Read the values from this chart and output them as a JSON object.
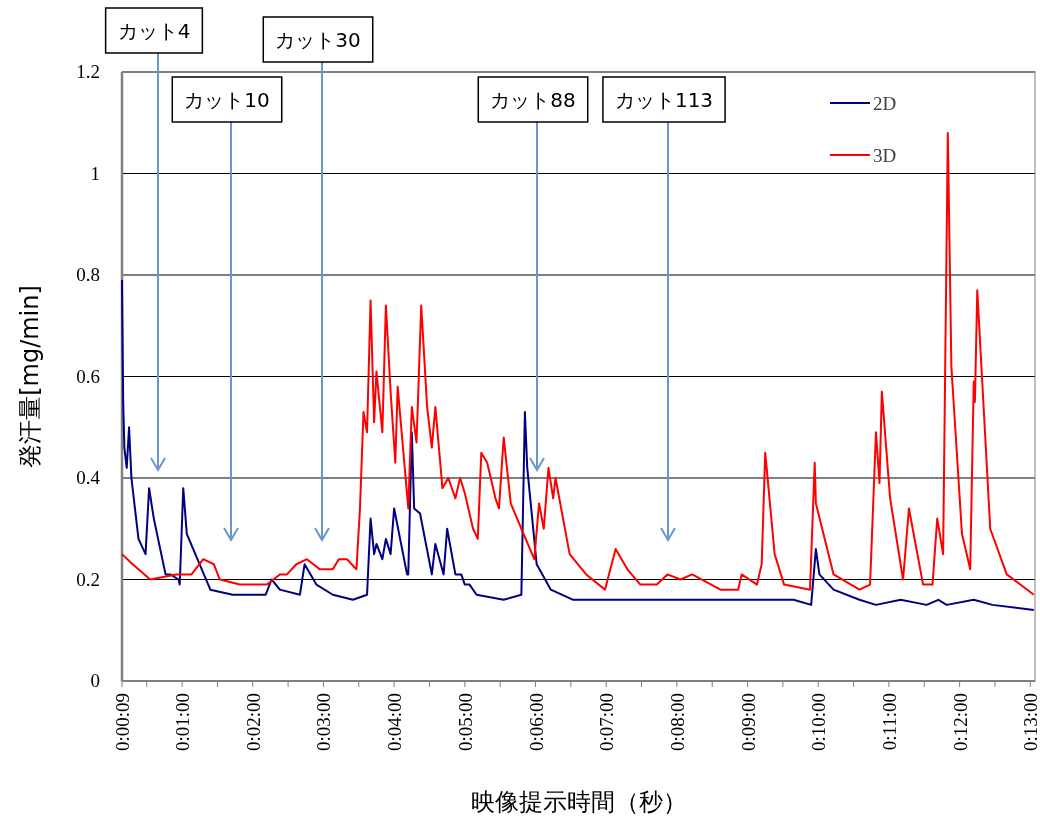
{
  "chart_data": {
    "type": "line",
    "xlabel": "映像提示時間（秒）",
    "ylabel": "発汗量[mg/min]",
    "xlim": [
      9,
      784
    ],
    "ylim": [
      0,
      1.2
    ],
    "xticks": [
      {
        "value": 9,
        "label": "0:00:09"
      },
      {
        "value": 30,
        "label": null
      },
      {
        "value": 60,
        "label": "0:01:00"
      },
      {
        "value": 90,
        "label": null
      },
      {
        "value": 120,
        "label": "0:02:00"
      },
      {
        "value": 150,
        "label": null
      },
      {
        "value": 180,
        "label": "0:03:00"
      },
      {
        "value": 210,
        "label": null
      },
      {
        "value": 240,
        "label": "0:04:00"
      },
      {
        "value": 270,
        "label": null
      },
      {
        "value": 300,
        "label": "0:05:00"
      },
      {
        "value": 330,
        "label": null
      },
      {
        "value": 360,
        "label": "0:06:00"
      },
      {
        "value": 390,
        "label": null
      },
      {
        "value": 420,
        "label": "0:07:00"
      },
      {
        "value": 450,
        "label": null
      },
      {
        "value": 480,
        "label": "0:08:00"
      },
      {
        "value": 510,
        "label": null
      },
      {
        "value": 540,
        "label": "0:09:00"
      },
      {
        "value": 570,
        "label": null
      },
      {
        "value": 600,
        "label": "0:10:00"
      },
      {
        "value": 630,
        "label": null
      },
      {
        "value": 660,
        "label": "0:11:00"
      },
      {
        "value": 690,
        "label": null
      },
      {
        "value": 720,
        "label": "0:12:00"
      },
      {
        "value": 750,
        "label": null
      },
      {
        "value": 780,
        "label": "0:13:00"
      }
    ],
    "yticks": [
      0,
      0.2,
      0.4,
      0.6,
      0.8,
      1,
      1.2
    ],
    "grid": "y",
    "legend": "top right",
    "marker": "none",
    "line_style": "solid",
    "annotations": [
      "カット4",
      "カット10",
      "カット30",
      "カット88",
      "カット113"
    ],
    "series": [
      {
        "name": "2D",
        "color": "#000080",
        "x": [
          9,
          10,
          11,
          13,
          15,
          17,
          23,
          29,
          32,
          36,
          46,
          50,
          57,
          58,
          61,
          64,
          84,
          103,
          131,
          136,
          143,
          160,
          164,
          174,
          188,
          205,
          217,
          220,
          223,
          225,
          230,
          233,
          237,
          240,
          251,
          252,
          255,
          257,
          262,
          272,
          275,
          282,
          285,
          292,
          297,
          300,
          304,
          310,
          333,
          348,
          351,
          353,
          361,
          373,
          392,
          421,
          463,
          483,
          494,
          550,
          579,
          594,
          598,
          601,
          613,
          635,
          649,
          670,
          692,
          702,
          709,
          732,
          748,
          783
        ],
        "values": [
          0.79,
          0.55,
          0.46,
          0.42,
          0.5,
          0.4,
          0.28,
          0.25,
          0.38,
          0.32,
          0.21,
          0.21,
          0.2,
          0.19,
          0.38,
          0.29,
          0.18,
          0.17,
          0.17,
          0.2,
          0.18,
          0.17,
          0.23,
          0.19,
          0.17,
          0.16,
          0.17,
          0.32,
          0.25,
          0.27,
          0.24,
          0.28,
          0.25,
          0.34,
          0.21,
          0.21,
          0.49,
          0.34,
          0.33,
          0.21,
          0.27,
          0.21,
          0.3,
          0.21,
          0.21,
          0.19,
          0.19,
          0.17,
          0.16,
          0.17,
          0.53,
          0.42,
          0.23,
          0.18,
          0.16,
          0.16,
          0.16,
          0.16,
          0.16,
          0.16,
          0.16,
          0.15,
          0.26,
          0.21,
          0.18,
          0.16,
          0.15,
          0.16,
          0.15,
          0.16,
          0.15,
          0.16,
          0.15,
          0.14
        ]
      },
      {
        "name": "3D",
        "color": "#ff0000",
        "x": [
          9,
          18,
          33,
          55,
          68,
          78,
          87,
          92,
          109,
          132,
          143,
          149,
          157,
          166,
          177,
          188,
          193,
          200,
          208,
          211,
          214,
          217,
          220,
          223,
          225,
          230,
          233,
          237,
          241,
          243,
          252,
          255,
          259,
          263,
          268,
          272,
          275,
          281,
          286,
          292,
          296,
          300,
          307,
          311,
          314,
          319,
          326,
          329,
          333,
          339,
          348,
          359,
          363,
          367,
          371,
          375,
          377,
          389,
          403,
          419,
          428,
          438,
          449,
          463,
          472,
          483,
          493,
          517,
          532,
          535,
          548,
          552,
          555,
          563,
          571,
          593,
          597,
          598,
          613,
          635,
          644,
          649,
          652,
          654,
          661,
          672,
          677,
          689,
          697,
          701,
          706,
          710,
          713,
          722,
          729,
          732,
          733,
          735,
          746,
          760,
          783
        ],
        "values": [
          0.25,
          0.23,
          0.2,
          0.21,
          0.21,
          0.24,
          0.23,
          0.2,
          0.19,
          0.19,
          0.21,
          0.21,
          0.23,
          0.24,
          0.22,
          0.22,
          0.24,
          0.24,
          0.22,
          0.34,
          0.53,
          0.49,
          0.75,
          0.51,
          0.61,
          0.49,
          0.74,
          0.57,
          0.43,
          0.58,
          0.34,
          0.54,
          0.47,
          0.74,
          0.54,
          0.46,
          0.54,
          0.38,
          0.4,
          0.36,
          0.4,
          0.37,
          0.3,
          0.28,
          0.45,
          0.43,
          0.36,
          0.34,
          0.48,
          0.35,
          0.3,
          0.24,
          0.35,
          0.3,
          0.42,
          0.36,
          0.4,
          0.25,
          0.21,
          0.18,
          0.26,
          0.22,
          0.19,
          0.19,
          0.21,
          0.2,
          0.21,
          0.18,
          0.18,
          0.21,
          0.19,
          0.23,
          0.45,
          0.25,
          0.19,
          0.18,
          0.43,
          0.35,
          0.21,
          0.18,
          0.19,
          0.49,
          0.39,
          0.57,
          0.36,
          0.2,
          0.34,
          0.19,
          0.19,
          0.32,
          0.25,
          1.08,
          0.62,
          0.29,
          0.22,
          0.59,
          0.55,
          0.77,
          0.3,
          0.21,
          0.17
        ]
      }
    ]
  }
}
